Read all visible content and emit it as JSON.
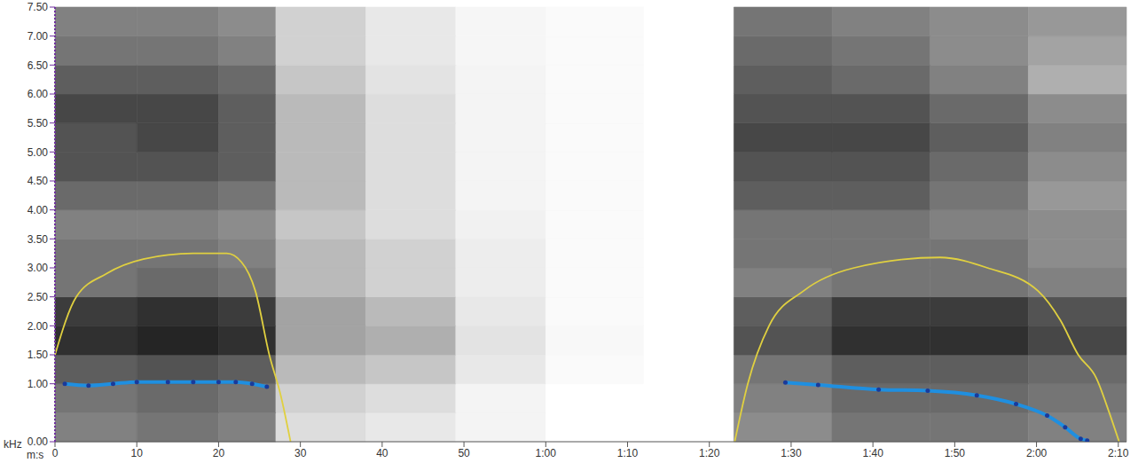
{
  "chart_data": {
    "type": "spectrogram",
    "x_label": "m:s",
    "y_label": "kHz",
    "xlim": [
      0,
      131
    ],
    "xticks": [
      0,
      10,
      20,
      30,
      40,
      50,
      {
        "value": 60,
        "label": "1:00"
      },
      {
        "value": 70,
        "label": "1:10"
      },
      {
        "value": 80,
        "label": "1:20"
      },
      {
        "value": 90,
        "label": "1:30"
      },
      {
        "value": 100,
        "label": "1:40"
      },
      {
        "value": 110,
        "label": "1:50"
      },
      {
        "value": 120,
        "label": "2:00"
      },
      {
        "value": 130,
        "label": "2:10"
      }
    ],
    "ylim": [
      0,
      7.5
    ],
    "yticks": [
      {
        "value": 0,
        "label": "0.00"
      },
      {
        "value": 1,
        "label": "1.00"
      },
      {
        "value": 1.5,
        "label": "1.50"
      },
      {
        "value": 2,
        "label": "2.00"
      },
      {
        "value": 2.5,
        "label": "2.50"
      },
      {
        "value": 3,
        "label": "3.00"
      },
      {
        "value": 3.5,
        "label": "3.50"
      },
      {
        "value": 4,
        "label": "4.00"
      },
      {
        "value": 4.5,
        "label": "4.50"
      },
      {
        "value": 5,
        "label": "5.00"
      },
      {
        "value": 5.5,
        "label": "5.50"
      },
      {
        "value": 6,
        "label": "6.00"
      },
      {
        "value": 6.5,
        "label": "6.50"
      },
      {
        "value": 7,
        "label": "7.00"
      },
      {
        "value": 7.5,
        "label": "7.50"
      }
    ],
    "grid": false,
    "spectrogram": {
      "x_edges": [
        0,
        10,
        20,
        27,
        38,
        49,
        60,
        72,
        83,
        95,
        107,
        119,
        131
      ],
      "y_edges": [
        0,
        0.5,
        1,
        1.5,
        2,
        2.5,
        3,
        3.5,
        4,
        4.5,
        5,
        5.5,
        6,
        6.5,
        7,
        7.5
      ],
      "cells": [
        [
          0.55,
          0.6,
          0.55,
          0.15,
          0.1,
          0.05,
          0,
          0,
          0.5,
          0.6,
          0.6,
          0.55
        ],
        [
          0.6,
          0.65,
          0.6,
          0.2,
          0.15,
          0.05,
          0,
          0,
          0.55,
          0.65,
          0.65,
          0.6
        ],
        [
          0.7,
          0.75,
          0.7,
          0.3,
          0.25,
          0.1,
          0.02,
          0,
          0.6,
          0.7,
          0.7,
          0.65
        ],
        [
          0.9,
          0.95,
          0.9,
          0.4,
          0.35,
          0.12,
          0.03,
          0,
          0.75,
          0.9,
          0.9,
          0.8
        ],
        [
          0.85,
          0.9,
          0.85,
          0.4,
          0.3,
          0.1,
          0.02,
          0,
          0.7,
          0.85,
          0.85,
          0.75
        ],
        [
          0.6,
          0.65,
          0.6,
          0.3,
          0.2,
          0.08,
          0.02,
          0,
          0.55,
          0.6,
          0.6,
          0.55
        ],
        [
          0.6,
          0.6,
          0.55,
          0.3,
          0.2,
          0.08,
          0.02,
          0,
          0.6,
          0.6,
          0.6,
          0.5
        ],
        [
          0.55,
          0.55,
          0.5,
          0.25,
          0.15,
          0.06,
          0.02,
          0,
          0.6,
          0.6,
          0.55,
          0.5
        ],
        [
          0.65,
          0.65,
          0.6,
          0.3,
          0.15,
          0.05,
          0.02,
          0,
          0.7,
          0.7,
          0.6,
          0.45
        ],
        [
          0.75,
          0.75,
          0.7,
          0.3,
          0.15,
          0.05,
          0.02,
          0,
          0.75,
          0.75,
          0.65,
          0.5
        ],
        [
          0.75,
          0.8,
          0.7,
          0.3,
          0.15,
          0.05,
          0.02,
          0,
          0.8,
          0.8,
          0.7,
          0.55
        ],
        [
          0.8,
          0.8,
          0.7,
          0.3,
          0.15,
          0.05,
          0.02,
          0,
          0.75,
          0.75,
          0.65,
          0.5
        ],
        [
          0.7,
          0.7,
          0.65,
          0.25,
          0.12,
          0.05,
          0.02,
          0,
          0.7,
          0.65,
          0.55,
          0.35
        ],
        [
          0.6,
          0.6,
          0.55,
          0.2,
          0.1,
          0.04,
          0.02,
          0,
          0.65,
          0.6,
          0.5,
          0.4
        ],
        [
          0.55,
          0.55,
          0.5,
          0.2,
          0.1,
          0.04,
          0.02,
          0,
          0.6,
          0.55,
          0.5,
          0.45
        ]
      ]
    },
    "series": [
      {
        "type": "line",
        "color": "#e0d040",
        "marker": "none",
        "line_style": "solid",
        "x": [
          0,
          2.6,
          6.3,
          10.8,
          16.9,
          21,
          22.8,
          24.5,
          26.2,
          27.6,
          28.8
        ],
        "values": [
          1.5,
          2.5,
          2.9,
          3.15,
          3.25,
          3.25,
          3.1,
          2.6,
          1.5,
          0.8,
          0
        ]
      },
      {
        "type": "line",
        "color": "#1f8fe0",
        "marker": "circle",
        "line_style": "solid",
        "x": [
          1.2,
          4.1,
          7.1,
          10,
          13.8,
          16.9,
          20,
          22.1,
          24.1,
          25.9
        ],
        "values": [
          1.0,
          0.97,
          1.0,
          1.03,
          1.03,
          1.03,
          1.03,
          1.03,
          1.0,
          0.95
        ]
      },
      {
        "type": "line",
        "color": "#e0d040",
        "marker": "none",
        "line_style": "solid",
        "x": [
          83.1,
          84.7,
          87.3,
          91.5,
          97.7,
          108.2,
          114,
          120.2,
          122.9,
          125.1,
          127.3,
          128.9,
          130.1
        ],
        "values": [
          0,
          1.0,
          2.0,
          2.6,
          3.0,
          3.18,
          3.0,
          2.6,
          2.1,
          1.5,
          1.1,
          0.5,
          0
        ]
      },
      {
        "type": "line",
        "color": "#1f8fe0",
        "marker": "circle",
        "line_style": "solid",
        "x": [
          89.3,
          93.3,
          100.7,
          106.7,
          112.7,
          117.5,
          121.3,
          123.5,
          125.4,
          126.2
        ],
        "values": [
          1.02,
          0.98,
          0.9,
          0.88,
          0.8,
          0.65,
          0.45,
          0.25,
          0.05,
          0.02
        ]
      }
    ]
  }
}
